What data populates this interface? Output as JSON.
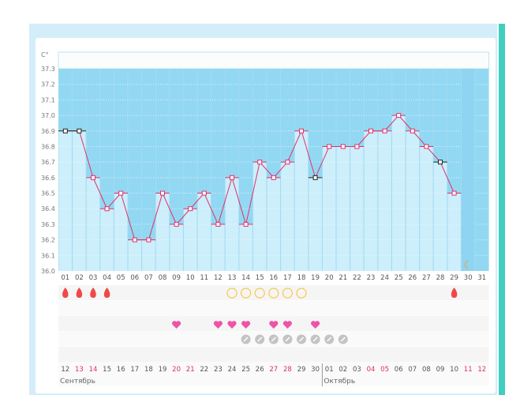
{
  "chart_data": {
    "type": "line",
    "ylabel": "C°",
    "ylim": [
      36.0,
      37.3
    ],
    "yticks": [
      "37.3",
      "37.2",
      "37.1",
      "37.0",
      "36.9",
      "36.8",
      "36.7",
      "36.6",
      "36.5",
      "36.4",
      "36.3",
      "36.2",
      "36.1",
      "36.0"
    ],
    "cycle_days": [
      "01",
      "02",
      "03",
      "04",
      "05",
      "06",
      "07",
      "08",
      "09",
      "10",
      "11",
      "12",
      "13",
      "14",
      "15",
      "16",
      "17",
      "18",
      "19",
      "20",
      "21",
      "22",
      "23",
      "24",
      "25",
      "26",
      "27",
      "28",
      "29",
      "30",
      "31"
    ],
    "temperatures": [
      36.9,
      36.9,
      36.6,
      36.4,
      36.5,
      36.2,
      36.2,
      36.5,
      36.3,
      36.4,
      36.5,
      36.3,
      36.6,
      36.3,
      36.7,
      36.6,
      36.7,
      36.9,
      36.6,
      36.8,
      36.8,
      36.8,
      36.9,
      36.9,
      37.0,
      36.9,
      36.8,
      36.7,
      36.5
    ],
    "excluded_points_days": [
      1,
      2,
      19,
      28
    ],
    "line_color": "#e0306a",
    "bar_color": "#cdeefb",
    "plot_bg_color": "#93d8f2",
    "today_day": 30,
    "today_icon": "moon-icon",
    "calendar_dates": [
      "12",
      "13",
      "14",
      "15",
      "16",
      "17",
      "18",
      "19",
      "20",
      "21",
      "22",
      "23",
      "24",
      "25",
      "26",
      "27",
      "28",
      "29",
      "30",
      "01",
      "02",
      "03",
      "04",
      "05",
      "06",
      "07",
      "08",
      "09",
      "10",
      "11",
      "12"
    ],
    "weekend_date_indices": [
      1,
      2,
      8,
      9,
      15,
      16,
      22,
      23,
      29,
      30
    ],
    "months": [
      {
        "label": "Сентябрь",
        "start_index": 0
      },
      {
        "label": "Октябрь",
        "start_index": 19
      }
    ]
  },
  "markers": {
    "menstruation_days": [
      1,
      2,
      3,
      4,
      29
    ],
    "menstruation_icon": "blood-drop-icon",
    "fertile_days": [
      13,
      14,
      15,
      16,
      17,
      18
    ],
    "fertile_icon": "circle-icon",
    "intercourse_days": [
      9,
      12,
      13,
      14,
      16,
      17,
      19
    ],
    "intercourse_icon": "heart-icon",
    "pill_days": [
      14,
      15,
      16,
      17,
      18,
      19,
      20,
      21
    ],
    "pill_icon": "pill-icon"
  }
}
